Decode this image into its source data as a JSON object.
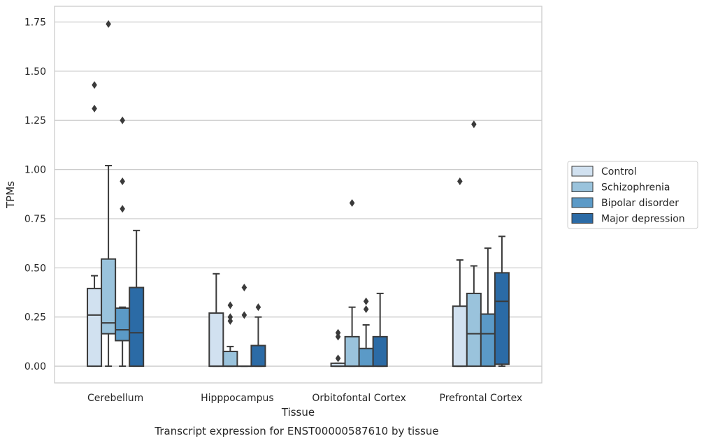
{
  "chart_data": {
    "type": "boxplot",
    "caption": "Transcript expression for ENST00000587610 by tissue",
    "xlabel": "Tissue",
    "ylabel": "TPMs",
    "ylim": [
      -0.085,
      1.83
    ],
    "yticks": [
      {
        "value": 0.0,
        "label": "0.00"
      },
      {
        "value": 0.25,
        "label": "0.25"
      },
      {
        "value": 0.5,
        "label": "0.50"
      },
      {
        "value": 0.75,
        "label": "0.75"
      },
      {
        "value": 1.0,
        "label": "1.00"
      },
      {
        "value": 1.25,
        "label": "1.25"
      },
      {
        "value": 1.5,
        "label": "1.50"
      },
      {
        "value": 1.75,
        "label": "1.75"
      }
    ],
    "grid": "horizontal",
    "legend_position": "right",
    "categories": [
      "Cerebellum",
      "Hipppocampus",
      "Orbitofontal Cortex",
      "Prefrontal Cortex"
    ],
    "series": [
      {
        "name": "Control",
        "color": "#d1e1f0",
        "boxes": [
          {
            "whislo": 0.0,
            "q1": 0.0,
            "med": 0.26,
            "q3": 0.395,
            "whishi": 0.46,
            "fliers": [
              1.31,
              1.43
            ]
          },
          {
            "whislo": 0.0,
            "q1": 0.0,
            "med": 0.0,
            "q3": 0.27,
            "whishi": 0.47,
            "fliers": []
          },
          {
            "whislo": 0.0,
            "q1": 0.0,
            "med": 0.0,
            "q3": 0.015,
            "whishi": 0.015,
            "fliers": [
              0.04,
              0.15,
              0.17
            ]
          },
          {
            "whislo": 0.0,
            "q1": 0.0,
            "med": 0.0,
            "q3": 0.305,
            "whishi": 0.54,
            "fliers": [
              0.94
            ]
          }
        ]
      },
      {
        "name": "Schizophrenia",
        "color": "#9ac3dc",
        "boxes": [
          {
            "whislo": 0.0,
            "q1": 0.165,
            "med": 0.22,
            "q3": 0.545,
            "whishi": 1.02,
            "fliers": [
              1.74
            ]
          },
          {
            "whislo": 0.0,
            "q1": 0.0,
            "med": 0.0,
            "q3": 0.075,
            "whishi": 0.1,
            "fliers": [
              0.23,
              0.25,
              0.31
            ]
          },
          {
            "whislo": 0.0,
            "q1": 0.0,
            "med": 0.0,
            "q3": 0.15,
            "whishi": 0.3,
            "fliers": [
              0.83
            ]
          },
          {
            "whislo": 0.0,
            "q1": 0.0,
            "med": 0.165,
            "q3": 0.37,
            "whishi": 0.51,
            "fliers": [
              1.23
            ]
          }
        ]
      },
      {
        "name": "Bipolar disorder",
        "color": "#5b9ac7",
        "boxes": [
          {
            "whislo": 0.0,
            "q1": 0.13,
            "med": 0.185,
            "q3": 0.295,
            "whishi": 0.3,
            "fliers": [
              0.8,
              0.94,
              1.25
            ]
          },
          {
            "whislo": 0.0,
            "q1": 0.0,
            "med": 0.0,
            "q3": 0.0,
            "whishi": 0.0,
            "fliers": [
              0.26,
              0.4
            ]
          },
          {
            "whislo": 0.0,
            "q1": 0.0,
            "med": 0.0,
            "q3": 0.09,
            "whishi": 0.21,
            "fliers": [
              0.29,
              0.33
            ]
          },
          {
            "whislo": 0.0,
            "q1": 0.0,
            "med": 0.165,
            "q3": 0.265,
            "whishi": 0.6,
            "fliers": []
          }
        ]
      },
      {
        "name": "Major depression",
        "color": "#2b6ba6",
        "boxes": [
          {
            "whislo": 0.0,
            "q1": 0.0,
            "med": 0.17,
            "q3": 0.4,
            "whishi": 0.69,
            "fliers": []
          },
          {
            "whislo": 0.0,
            "q1": 0.0,
            "med": 0.0,
            "q3": 0.105,
            "whishi": 0.25,
            "fliers": [
              0.3
            ]
          },
          {
            "whislo": 0.0,
            "q1": 0.0,
            "med": 0.0,
            "q3": 0.15,
            "whishi": 0.37,
            "fliers": []
          },
          {
            "whislo": 0.0,
            "q1": 0.01,
            "med": 0.33,
            "q3": 0.475,
            "whishi": 0.66,
            "fliers": []
          }
        ]
      }
    ]
  }
}
